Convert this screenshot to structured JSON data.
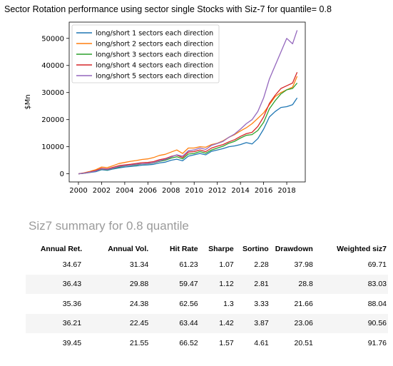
{
  "chart_data": {
    "type": "line",
    "title": "Sector Rotation performance using sector single Stocks with Siz-7 for quantile= 0.8",
    "xlabel": "",
    "ylabel": "$Mn",
    "xlim": [
      1999.2,
      2019.6
    ],
    "ylim": [
      -3000,
      56000
    ],
    "xticks": [
      2000,
      2002,
      2004,
      2006,
      2008,
      2010,
      2012,
      2014,
      2016,
      2018
    ],
    "yticks": [
      0,
      10000,
      20000,
      30000,
      40000,
      50000
    ],
    "grid": false,
    "legend_position": "top-left",
    "x": [
      2000.0,
      2000.5,
      2001.0,
      2001.5,
      2002.0,
      2002.5,
      2003.0,
      2003.5,
      2004.0,
      2004.5,
      2005.0,
      2005.5,
      2006.0,
      2006.5,
      2007.0,
      2007.5,
      2008.0,
      2008.5,
      2009.0,
      2009.5,
      2010.0,
      2010.5,
      2011.0,
      2011.5,
      2012.0,
      2012.5,
      2013.0,
      2013.5,
      2014.0,
      2014.5,
      2015.0,
      2015.5,
      2016.0,
      2016.5,
      2017.0,
      2017.5,
      2018.0,
      2018.5,
      2018.9
    ],
    "series": [
      {
        "name": "long/short 1 sectors each direction",
        "color": "#1f77b4",
        "values": [
          0,
          200,
          500,
          800,
          1500,
          1300,
          1800,
          2200,
          2500,
          2700,
          2900,
          3200,
          3300,
          3500,
          4000,
          4300,
          5000,
          5400,
          4800,
          6500,
          7000,
          7500,
          7000,
          8300,
          8800,
          9300,
          10000,
          10300,
          10800,
          11500,
          11000,
          13000,
          16500,
          21000,
          23000,
          24500,
          24800,
          25500,
          28000
        ]
      },
      {
        "name": "long/short 2 sectors each direction",
        "color": "#ff7f0e",
        "values": [
          0,
          400,
          900,
          1500,
          2500,
          2300,
          3000,
          3800,
          4200,
          4600,
          4900,
          5300,
          5500,
          6000,
          6800,
          7200,
          8000,
          8800,
          7500,
          9500,
          9500,
          10000,
          9800,
          10800,
          11300,
          12200,
          13500,
          14500,
          15800,
          17000,
          18500,
          20500,
          22500,
          25500,
          28500,
          30000,
          31000,
          32000,
          36000
        ]
      },
      {
        "name": "long/short 3 sectors each direction",
        "color": "#2ca02c",
        "values": [
          0,
          200,
          600,
          1000,
          1700,
          1500,
          2000,
          2500,
          2900,
          3100,
          3300,
          3600,
          3700,
          4000,
          4600,
          5000,
          5800,
          6300,
          5500,
          7300,
          7500,
          8200,
          7600,
          8800,
          9500,
          10200,
          11300,
          12000,
          13200,
          14200,
          14500,
          16000,
          19000,
          24000,
          27000,
          29500,
          31000,
          31500,
          33500
        ]
      },
      {
        "name": "long/short 4 sectors each direction",
        "color": "#d62728",
        "values": [
          0,
          300,
          700,
          1200,
          2000,
          1800,
          2400,
          3000,
          3300,
          3500,
          3800,
          4100,
          4200,
          4500,
          5200,
          5600,
          6400,
          6900,
          6000,
          8000,
          8200,
          8800,
          8200,
          9500,
          10200,
          10800,
          11800,
          12600,
          13800,
          14800,
          15300,
          17500,
          21000,
          26000,
          29000,
          31500,
          32500,
          33500,
          37500
        ]
      },
      {
        "name": "long/short 5 sectors each direction",
        "color": "#9467bd",
        "values": [
          0,
          250,
          600,
          1000,
          1800,
          1600,
          2100,
          2700,
          3000,
          3200,
          3500,
          3700,
          3800,
          4100,
          4800,
          5300,
          6200,
          7000,
          6500,
          8500,
          8800,
          9500,
          9000,
          10500,
          11200,
          12000,
          13500,
          14700,
          16500,
          18500,
          20000,
          23000,
          28000,
          35000,
          40000,
          45000,
          50000,
          48000,
          53000
        ]
      }
    ]
  },
  "summary": {
    "title": "Siz7 summary for 0.8 quantile",
    "columns": [
      "Annual Ret.",
      "Annual Vol.",
      "Hit Rate",
      "Sharpe",
      "Sortino",
      "Drawdown",
      "Weighted siz7"
    ],
    "rows": [
      [
        "34.67",
        "31.34",
        "61.23",
        "1.07",
        "2.28",
        "37.98",
        "69.71"
      ],
      [
        "36.43",
        "29.88",
        "59.47",
        "1.12",
        "2.81",
        "28.8",
        "83.03"
      ],
      [
        "35.36",
        "24.38",
        "62.56",
        "1.3",
        "3.33",
        "21.66",
        "88.04"
      ],
      [
        "36.21",
        "22.45",
        "63.44",
        "1.42",
        "3.87",
        "23.06",
        "90.56"
      ],
      [
        "39.45",
        "21.55",
        "66.52",
        "1.57",
        "4.61",
        "20.51",
        "91.76"
      ]
    ]
  }
}
